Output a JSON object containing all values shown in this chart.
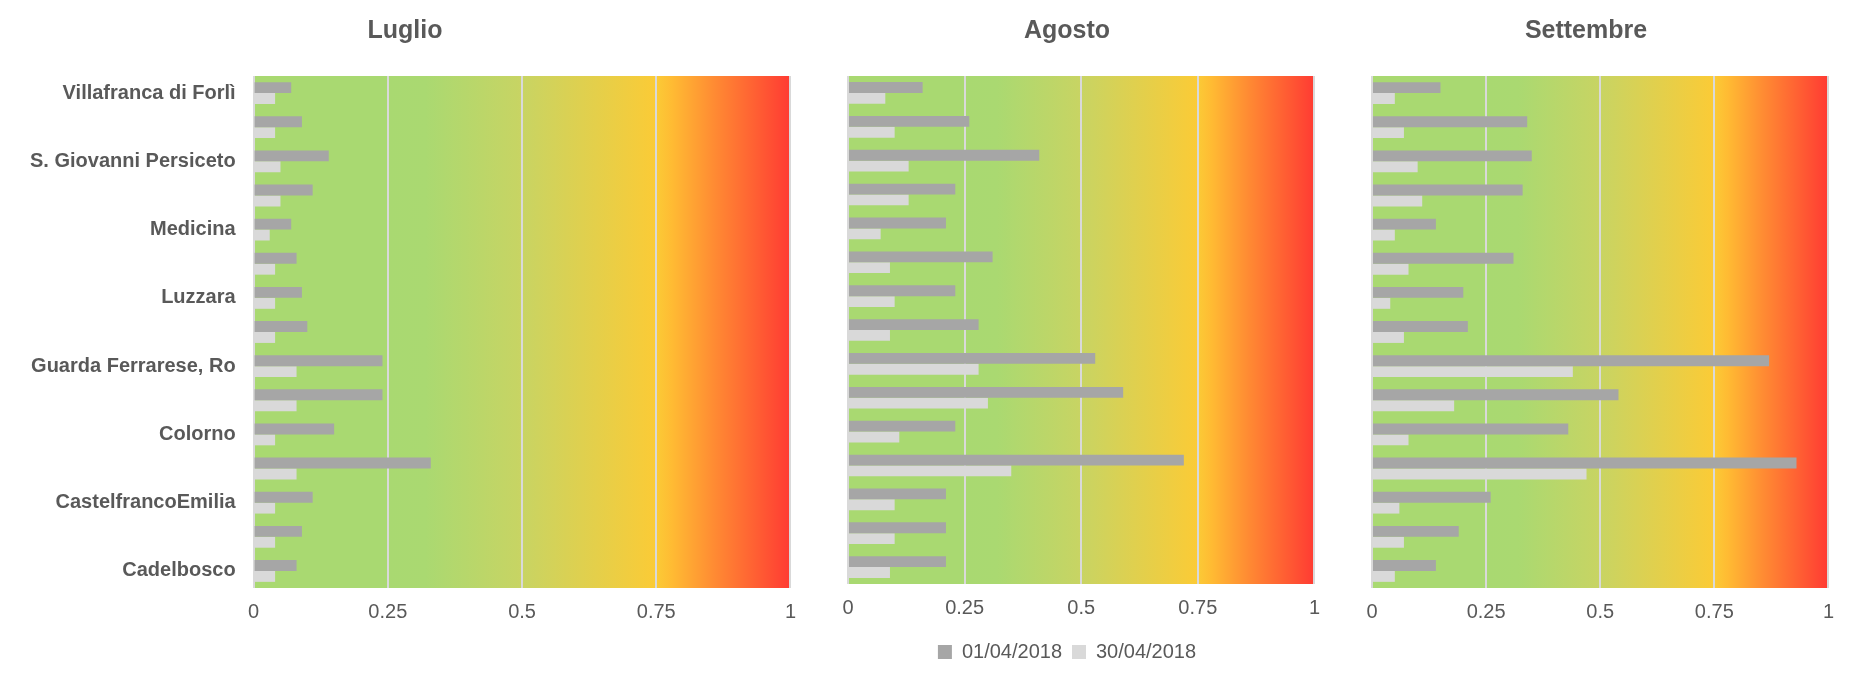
{
  "chart_data": [
    {
      "type": "bar",
      "orientation": "horizontal",
      "title": "Luglio",
      "categories": [
        "Villafranca di Forlì",
        null,
        "S. Giovanni Persiceto",
        null,
        "Medicina",
        null,
        "Luzzara",
        null,
        "Guarda Ferrarese, Ro",
        null,
        "Colorno",
        null,
        "CastelfrancoEmilia",
        null,
        "Cadelbosco"
      ],
      "series": [
        {
          "color": "#a6a6a6",
          "values": [
            0.07,
            0.09,
            0.14,
            0.11,
            0.07,
            0.08,
            0.09,
            0.1,
            0.24,
            0.24,
            0.15,
            0.33,
            0.11,
            0.09,
            0.08
          ]
        },
        {
          "color": "#d9d9d9",
          "values": [
            0.04,
            0.04,
            0.05,
            0.05,
            0.03,
            0.04,
            0.04,
            0.04,
            0.08,
            0.08,
            0.04,
            0.08,
            0.04,
            0.04,
            0.04
          ]
        }
      ],
      "xlim": [
        0,
        1
      ],
      "xticks": [
        0,
        0.25,
        0.5,
        0.75,
        1
      ],
      "grid": "x",
      "legend": false
    },
    {
      "type": "bar",
      "orientation": "horizontal",
      "title": "Agosto",
      "categories": [
        null,
        null,
        null,
        null,
        null,
        null,
        null,
        null,
        null,
        null,
        null,
        null,
        null,
        null,
        null
      ],
      "series": [
        {
          "name": "01/04/2018",
          "color": "#a6a6a6",
          "values": [
            0.16,
            0.26,
            0.41,
            0.23,
            0.21,
            0.31,
            0.23,
            0.28,
            0.53,
            0.59,
            0.23,
            0.72,
            0.21,
            0.21,
            0.21
          ]
        },
        {
          "name": "30/04/2018",
          "color": "#d9d9d9",
          "values": [
            0.08,
            0.1,
            0.13,
            0.13,
            0.07,
            0.09,
            0.1,
            0.09,
            0.28,
            0.3,
            0.11,
            0.35,
            0.1,
            0.1,
            0.09
          ]
        }
      ],
      "xlim": [
        0,
        1
      ],
      "xticks": [
        0,
        0.25,
        0.5,
        0.75,
        1
      ],
      "grid": "x",
      "legend": "bottom"
    },
    {
      "type": "bar",
      "orientation": "horizontal",
      "title": "Settembre",
      "categories": [
        null,
        null,
        null,
        null,
        null,
        null,
        null,
        null,
        null,
        null,
        null,
        null,
        null,
        null,
        null
      ],
      "series": [
        {
          "color": "#a6a6a6",
          "values": [
            0.15,
            0.34,
            0.35,
            0.33,
            0.14,
            0.31,
            0.2,
            0.21,
            0.87,
            0.54,
            0.43,
            0.93,
            0.26,
            0.19,
            0.14
          ]
        },
        {
          "color": "#d9d9d9",
          "values": [
            0.05,
            0.07,
            0.1,
            0.11,
            0.05,
            0.08,
            0.04,
            0.07,
            0.44,
            0.18,
            0.08,
            0.47,
            0.06,
            0.07,
            0.05
          ]
        }
      ],
      "xlim": [
        0,
        1
      ],
      "xticks": [
        0,
        0.25,
        0.5,
        0.75,
        1
      ],
      "grid": "x",
      "legend": false
    }
  ]
}
